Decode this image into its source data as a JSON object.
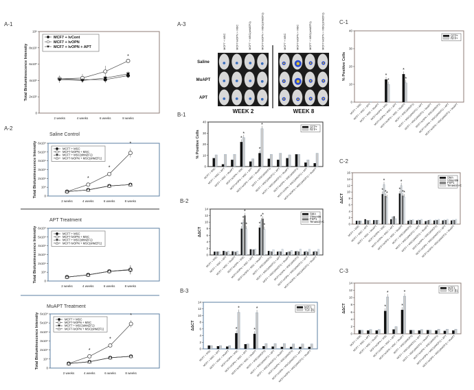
{
  "panel_labels": {
    "a1": "A-1",
    "a2": "A-2",
    "a3": "A-3",
    "b1": "B-1",
    "b2": "B-2",
    "b3": "B-3",
    "c1": "C-1",
    "c2": "C-2",
    "c3": "C-3"
  },
  "imaging": {
    "column_labels": [
      "MCF7 + MSC",
      "MCF7-lvOPN + MSC",
      "MCF7 + MSC(shMZF1)",
      "MCF7-lvOPN + MSC(shMZF1)"
    ],
    "row_labels": [
      "Saline",
      "MuAPT",
      "APT"
    ],
    "week_labels": [
      "WEEK 2",
      "WEEK 8"
    ]
  },
  "colors": {
    "black": "#111111",
    "light": "#c9c9c9",
    "dark": "#6e6e6e",
    "pale": "#e4e4e4",
    "frame": "#8c7b74",
    "frame_blue": "#5a7da0"
  },
  "bar_categories": [
    "MCF7 + MSC",
    "MCF7 + MSC + APT",
    "MCF7 + MSC + MuAPT",
    "MCF7-lvOPN + MSC",
    "MCF7-lvOPN + MSC + APT",
    "MCF7-lvOPN + MSC + MuAPT",
    "MCF7 + MSC(shMZF1)",
    "MCF7 + MSC(shMZF1) + APT",
    "MCF7 + MSC(shMZF1) + MuAPT",
    "MCF7-lvOPN + MSC(shMZF1)",
    "MCF7-lvOPN + MSC(shMZF1) + APT",
    "MCF7-lvOPN + MSC(shMZF1) + MuAPT"
  ],
  "chart_data": [
    {
      "id": "a1",
      "type": "line",
      "title": "",
      "ylabel": "Total Bioluminescence Intensity",
      "x": [
        "2 weeks",
        "4 weeks",
        "6 weeks",
        "8 weeks"
      ],
      "ylim": [
        0,
        1000000
      ],
      "yticks": [
        0,
        200000,
        400000,
        600000,
        800000,
        1000000
      ],
      "ytick_labels": [
        "0",
        "2x10⁵",
        "4x10⁵",
        "6x10⁵",
        "8x10⁵",
        "10⁶"
      ],
      "legend_position": "top-left",
      "series": [
        {
          "name": "MCF7 + lvCont",
          "marker": "filled-circle",
          "values": [
            420000,
            410000,
            410000,
            460000
          ],
          "errors": [
            40000,
            30000,
            40000,
            30000
          ]
        },
        {
          "name": "MCF7 + lvOPN",
          "marker": "open-circle",
          "values": [
            420000,
            430000,
            510000,
            640000
          ],
          "errors": [
            40000,
            50000,
            70000,
            0
          ]
        },
        {
          "name": "MCF7 + lvOPN + APT",
          "marker": "triangle-down",
          "values": [
            410000,
            400000,
            430000,
            480000
          ],
          "errors": [
            40000,
            30000,
            30000,
            30000
          ]
        }
      ],
      "stars": [
        [
          1,
          3
        ]
      ]
    },
    {
      "id": "a2",
      "type": "line",
      "title": "Saline Control",
      "ylabel": "Total Bioluminescence Intensity",
      "x": [
        "2 weeks",
        "4 weeks",
        "6 weeks",
        "8 weeks"
      ],
      "ylim": [
        0,
        60000
      ],
      "yticks": [
        0,
        10000,
        20000,
        30000,
        40000,
        50000,
        60000
      ],
      "ytick_labels": [
        "0",
        "10⁴",
        "2x10⁴",
        "3x10⁴",
        "4x10⁴",
        "5x10⁴",
        "6x10⁴"
      ],
      "legend_position": "top-left",
      "series": [
        {
          "name": "MCF7 + MSC",
          "marker": "filled-circle",
          "values": [
            5000,
            7000,
            11500,
            13000
          ],
          "errors": [
            0,
            0,
            0,
            0
          ]
        },
        {
          "name": "MCF7-lvOPN + MSC",
          "marker": "open-circle",
          "values": [
            5000,
            13000,
            25000,
            49000
          ],
          "errors": [
            0,
            2000,
            2000,
            5000
          ]
        },
        {
          "name": "MCF7 + MSC(shMZF1)",
          "marker": "triangle-down",
          "values": [
            5000,
            7000,
            11500,
            13000
          ],
          "errors": [
            0,
            0,
            0,
            0
          ]
        },
        {
          "name": "MCF7-lvOPN + MSC(shMZF1)",
          "marker": "open-triangle",
          "values": [
            5000,
            7000,
            11500,
            13000
          ],
          "errors": [
            0,
            0,
            0,
            0
          ]
        }
      ],
      "stars": [
        [
          1,
          1
        ],
        [
          1,
          2
        ],
        [
          1,
          3
        ]
      ]
    },
    {
      "id": "apt",
      "type": "line",
      "title": "APT Treatment",
      "ylabel": "Total Bioluminescence Intensity",
      "x": [
        "2 weeks",
        "4 weeks",
        "6 weeks",
        "8 weeks"
      ],
      "ylim": [
        0,
        60000
      ],
      "yticks": [
        0,
        10000,
        20000,
        30000,
        40000,
        50000,
        60000
      ],
      "ytick_labels": [
        "0",
        "10⁴",
        "2x10⁴",
        "3x10⁴",
        "4x10⁴",
        "5x10⁴",
        "6x10⁴"
      ],
      "legend_position": "top-left",
      "series": [
        {
          "name": "MCF7 + MSC",
          "marker": "filled-circle",
          "values": [
            4500,
            7000,
            11000,
            12500
          ],
          "errors": [
            0,
            0,
            1000,
            5000
          ]
        },
        {
          "name": "MCF7-lvOPN + MSC",
          "marker": "open-circle",
          "values": [
            4500,
            7000,
            11000,
            13000
          ],
          "errors": [
            0,
            0,
            1000,
            5000
          ]
        },
        {
          "name": "MCF7 + MSC(shMZF1)",
          "marker": "triangle-down",
          "values": [
            4500,
            7000,
            11000,
            12500
          ],
          "errors": [
            0,
            0,
            0,
            0
          ]
        },
        {
          "name": "MCF7-lvOPN + MSC(shMZF1)",
          "marker": "open-triangle",
          "values": [
            4500,
            7000,
            11000,
            13000
          ],
          "errors": [
            0,
            0,
            0,
            0
          ]
        }
      ],
      "stars": []
    },
    {
      "id": "muapt",
      "type": "line",
      "title": "MuAPT Treatment",
      "ylabel": "Total Bioluminescence Intensity",
      "x": [
        "2 weeks",
        "4 weeks",
        "6 weeks",
        "8 weeks"
      ],
      "ylim": [
        0,
        60000
      ],
      "yticks": [
        0,
        10000,
        20000,
        30000,
        40000,
        50000,
        60000
      ],
      "ytick_labels": [
        "0",
        "10⁴",
        "2x10⁴",
        "3x10⁴",
        "4x10⁴",
        "5x10⁴",
        "6x10⁴"
      ],
      "legend_position": "top-left",
      "series": [
        {
          "name": "MCF7 + MSC",
          "marker": "filled-circle",
          "values": [
            5000,
            7000,
            11500,
            13000
          ],
          "errors": [
            0,
            0,
            0,
            0
          ]
        },
        {
          "name": "MCF7-lvOPN + MSC",
          "marker": "open-circle",
          "values": [
            5000,
            13000,
            25000,
            49000
          ],
          "errors": [
            0,
            1500,
            2000,
            4000
          ]
        },
        {
          "name": "MCF7 + MSC(shMZF1)",
          "marker": "triangle-down",
          "values": [
            5000,
            7000,
            11500,
            13000
          ],
          "errors": [
            0,
            0,
            0,
            0
          ]
        },
        {
          "name": "MCF7-lvOPN + MSC(shMZF1)",
          "marker": "open-triangle",
          "values": [
            5000,
            7000,
            11500,
            13000
          ],
          "errors": [
            0,
            0,
            0,
            0
          ]
        }
      ],
      "stars": [
        [
          1,
          1
        ],
        [
          1,
          2
        ],
        [
          1,
          3
        ]
      ]
    },
    {
      "id": "b1",
      "type": "bar",
      "ylabel": "% Positive Cells",
      "ylim": [
        0,
        40
      ],
      "yticks": [
        0,
        10,
        20,
        30,
        40
      ],
      "ytick_labels": [
        "0",
        "10",
        "20",
        "30",
        "40"
      ],
      "legend_position": "top-right",
      "series": [
        {
          "name": "GFP+",
          "values": [
            7.5,
            2,
            6,
            22,
            4.5,
            12,
            7,
            6,
            7.5,
            11,
            3.5,
            3
          ]
        },
        {
          "name": "RFP+",
          "values": [
            10.5,
            11,
            11,
            26,
            7,
            34,
            11,
            12,
            10.5,
            11,
            6,
            12
          ]
        }
      ],
      "stars": [
        [
          0,
          3
        ],
        [
          1,
          3
        ],
        [
          0,
          5
        ],
        [
          1,
          5
        ]
      ]
    },
    {
      "id": "b2",
      "type": "bar",
      "ylabel": "ΔΔCT",
      "ylim": [
        0,
        14
      ],
      "yticks": [
        0,
        2,
        4,
        6,
        8,
        10,
        12,
        14
      ],
      "ytick_labels": [
        "0",
        "2",
        "4",
        "6",
        "8",
        "10",
        "12",
        "14"
      ],
      "legend_position": "top-right",
      "series": [
        {
          "name": "SMA",
          "values": [
            1,
            1.2,
            1.1,
            8,
            1.7,
            8.3,
            1.2,
            1,
            0.8,
            1.1,
            1,
            1
          ]
        },
        {
          "name": "Vimentin",
          "values": [
            1,
            1.1,
            1,
            10,
            1.6,
            10.5,
            1.1,
            1.1,
            1,
            1.2,
            1.2,
            1.2
          ]
        },
        {
          "name": "FSP1",
          "values": [
            1,
            0.9,
            0.9,
            12,
            1.6,
            11,
            1,
            1,
            1,
            1,
            0.9,
            1
          ]
        },
        {
          "name": "Tenascin-C",
          "values": [
            1,
            1.2,
            1.2,
            8,
            1.8,
            7.8,
            1.6,
            1.8,
            1.4,
            1.8,
            1.7,
            1.7
          ]
        }
      ],
      "stars": [
        [
          0,
          3
        ],
        [
          1,
          3
        ],
        [
          2,
          3
        ],
        [
          3,
          3
        ],
        [
          0,
          5
        ],
        [
          1,
          5
        ],
        [
          2,
          5
        ],
        [
          3,
          5
        ]
      ]
    },
    {
      "id": "b3",
      "type": "bar",
      "ylabel": "ΔΔCT",
      "ylim": [
        0,
        14
      ],
      "yticks": [
        0,
        2,
        4,
        6,
        8,
        10,
        12,
        14
      ],
      "ytick_labels": [
        "0",
        "2",
        "4",
        "6",
        "8",
        "10",
        "12",
        "14"
      ],
      "legend_position": "top-right",
      "series": [
        {
          "name": "MZF1",
          "values": [
            1,
            0.8,
            0.7,
            4.7,
            1.4,
            4.5,
            0.8,
            0.7,
            0.6,
            0.6,
            0.6,
            0.6
          ]
        },
        {
          "name": "TGF-β1",
          "values": [
            1,
            1,
            1,
            11,
            1.5,
            10.9,
            1.6,
            1.6,
            1.6,
            1.5,
            1.5,
            1.5
          ]
        }
      ],
      "stars": [
        [
          0,
          3
        ],
        [
          1,
          3
        ],
        [
          0,
          5
        ],
        [
          1,
          5
        ]
      ]
    },
    {
      "id": "c1",
      "type": "bar",
      "ylabel": "% Positive Cells",
      "ylim": [
        0,
        40
      ],
      "yticks": [
        0,
        10,
        20,
        30,
        40
      ],
      "ytick_labels": [
        "0",
        "10",
        "20",
        "30",
        "40"
      ],
      "legend_position": "top-right",
      "series": [
        {
          "name": "GFP+",
          "values": [
            0,
            0,
            0,
            12.7,
            0,
            15.7,
            0,
            0,
            0,
            0,
            0,
            0
          ]
        },
        {
          "name": "RFP+",
          "values": [
            0,
            0.2,
            0.1,
            10,
            0.2,
            10.8,
            0,
            0,
            0,
            0,
            0,
            0
          ]
        }
      ],
      "stars": [
        [
          0,
          3
        ],
        [
          1,
          3
        ],
        [
          0,
          5
        ],
        [
          1,
          5
        ]
      ]
    },
    {
      "id": "c2",
      "type": "bar",
      "ylabel": "ΔΔCT",
      "ylim": [
        0,
        16
      ],
      "yticks": [
        0,
        2,
        4,
        6,
        8,
        10,
        12,
        14,
        16
      ],
      "ytick_labels": [
        "0",
        "2",
        "4",
        "6",
        "8",
        "10",
        "12",
        "14",
        "16"
      ],
      "legend_position": "top-right",
      "series": [
        {
          "name": "SMA",
          "values": [
            1,
            1.5,
            1.2,
            9.3,
            1.5,
            9.5,
            1,
            1.1,
            0.9,
            1.1,
            1.1,
            1.1
          ]
        },
        {
          "name": "Vimentin",
          "values": [
            1,
            1.2,
            1.2,
            12.3,
            2.3,
            12,
            1.3,
            1.3,
            1,
            1.3,
            1.3,
            1.3
          ]
        },
        {
          "name": "FSP1",
          "values": [
            1,
            1.1,
            1.2,
            8.7,
            2.4,
            8.8,
            1.2,
            1.2,
            1.2,
            1.2,
            1.2,
            1.2
          ]
        },
        {
          "name": "Tenascin-C",
          "values": [
            1,
            1.2,
            1.2,
            8.3,
            1.7,
            8.5,
            1.4,
            1.5,
            1.3,
            1.5,
            1.5,
            1.5
          ]
        }
      ],
      "stars": [
        [
          0,
          3
        ],
        [
          1,
          3
        ],
        [
          2,
          3
        ],
        [
          3,
          3
        ],
        [
          0,
          5
        ],
        [
          1,
          5
        ],
        [
          2,
          5
        ],
        [
          3,
          5
        ]
      ]
    },
    {
      "id": "c3",
      "type": "bar",
      "ylabel": "ΔΔCT",
      "ylim": [
        0,
        14
      ],
      "yticks": [
        0,
        2,
        4,
        6,
        8,
        10,
        12,
        14
      ],
      "ytick_labels": [
        "0",
        "2",
        "4",
        "6",
        "8",
        "10",
        "12",
        "14"
      ],
      "legend_position": "top-right",
      "series": [
        {
          "name": "MZF1",
          "values": [
            1,
            0.9,
            0.9,
            6.3,
            1.2,
            6.6,
            1,
            0.9,
            1,
            0.9,
            0.8,
            0.9
          ]
        },
        {
          "name": "TGF-β1",
          "values": [
            1,
            1.2,
            1.2,
            10.2,
            2,
            10.4,
            1,
            1.2,
            1,
            1.3,
            1.3,
            1.3
          ]
        }
      ],
      "stars": [
        [
          0,
          3
        ],
        [
          1,
          3
        ],
        [
          0,
          5
        ],
        [
          1,
          5
        ]
      ]
    }
  ]
}
